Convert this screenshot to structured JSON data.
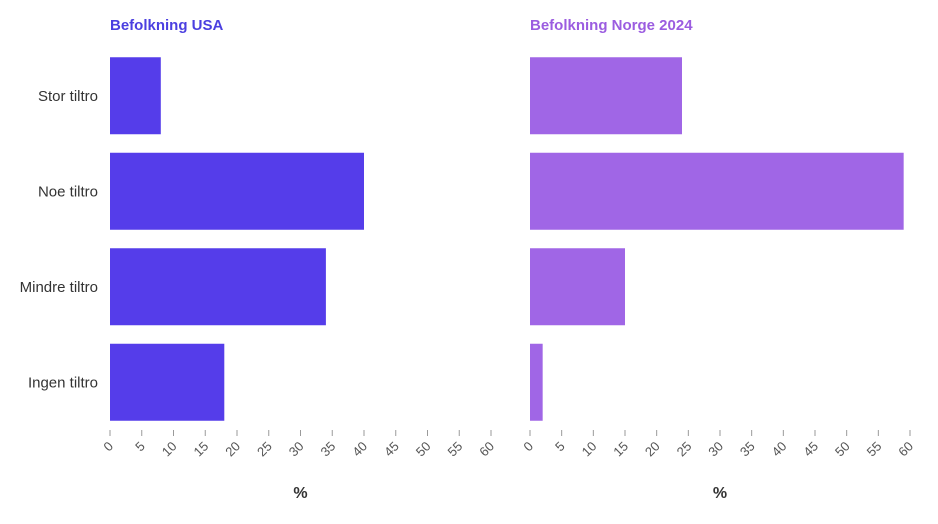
{
  "chart_data": [
    {
      "type": "bar",
      "orientation": "horizontal",
      "title": "Befolkning USA",
      "title_color": "#4B3FE0",
      "bar_color": "#553DEA",
      "categories": [
        "Stor tiltro",
        "Noe tiltro",
        "Mindre tiltro",
        "Ingen tiltro"
      ],
      "values": [
        8,
        40,
        34,
        18
      ],
      "xlabel": "%",
      "xlim": [
        0,
        60
      ],
      "ticks": [
        "0",
        "5",
        "10",
        "15",
        "20",
        "25",
        "30",
        "35",
        "40",
        "45",
        "50",
        "55",
        "60"
      ],
      "grid": false
    },
    {
      "type": "bar",
      "orientation": "horizontal",
      "title": "Befolkning Norge 2024",
      "title_color": "#9B5CE0",
      "bar_color": "#A066E6",
      "categories": [
        "Stor tiltro",
        "Noe tiltro",
        "Mindre tiltro",
        "Ingen tiltro"
      ],
      "values": [
        24,
        59,
        15,
        2
      ],
      "xlabel": "%",
      "xlim": [
        0,
        60
      ],
      "ticks": [
        "0",
        "5",
        "10",
        "15",
        "20",
        "25",
        "30",
        "35",
        "40",
        "45",
        "50",
        "55",
        "60"
      ],
      "grid": false
    }
  ]
}
